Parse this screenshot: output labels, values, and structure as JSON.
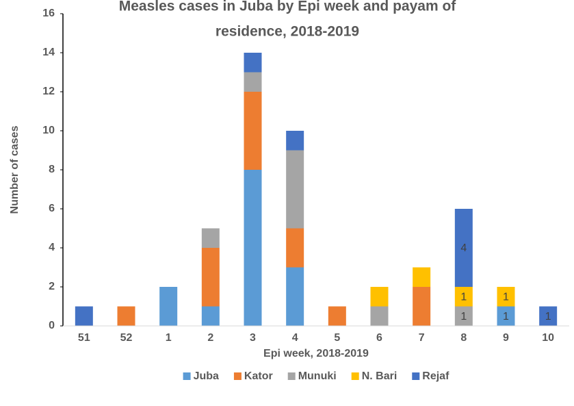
{
  "chart_data": {
    "type": "stacked_bar",
    "title": [
      "Measles cases in Juba by Epi week and payam of",
      "residence, 2018-2019"
    ],
    "x_label": "Epi week, 2018-2019",
    "y_label": "Number of cases",
    "categories": [
      "51",
      "52",
      "1",
      "2",
      "3",
      "4",
      "5",
      "6",
      "7",
      "8",
      "9",
      "10"
    ],
    "series": [
      {
        "name": "Juba",
        "color": "#5b9bd5",
        "values": [
          0,
          0,
          2,
          1,
          8,
          3,
          0,
          0,
          0,
          0,
          1,
          0
        ],
        "value_labels": [
          null,
          null,
          null,
          null,
          null,
          null,
          null,
          null,
          null,
          null,
          "1",
          null
        ]
      },
      {
        "name": "Kator",
        "color": "#ed7d31",
        "values": [
          0,
          1,
          0,
          3,
          4,
          2,
          1,
          0,
          2,
          0,
          0,
          0
        ]
      },
      {
        "name": "Munuki",
        "color": "#a5a5a5",
        "values": [
          0,
          0,
          0,
          1,
          1,
          4,
          0,
          1,
          0,
          1,
          0,
          0
        ],
        "value_labels": [
          null,
          null,
          null,
          null,
          null,
          null,
          null,
          null,
          null,
          "1",
          null,
          null
        ]
      },
      {
        "name": "N. Bari",
        "color": "#ffc000",
        "values": [
          0,
          0,
          0,
          0,
          0,
          0,
          0,
          1,
          1,
          1,
          1,
          0
        ],
        "value_labels": [
          null,
          null,
          null,
          null,
          null,
          null,
          null,
          null,
          null,
          "1",
          "1",
          null
        ]
      },
      {
        "name": "Rejaf",
        "color": "#4472c4",
        "values": [
          1,
          0,
          0,
          0,
          1,
          1,
          0,
          0,
          0,
          4,
          0,
          1
        ],
        "value_labels": [
          null,
          null,
          null,
          null,
          null,
          null,
          null,
          null,
          null,
          "4",
          null,
          "1"
        ]
      }
    ],
    "ylim": [
      0,
      16
    ],
    "yticks": [
      0,
      2,
      4,
      6,
      8,
      10,
      12,
      14,
      16
    ],
    "legend": "bottom"
  }
}
